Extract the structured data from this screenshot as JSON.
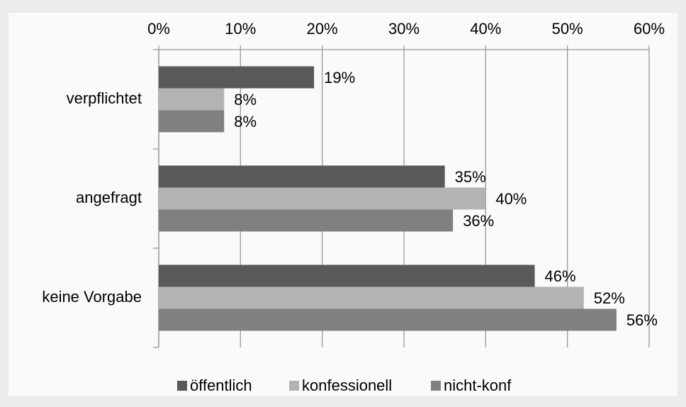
{
  "chart_data": {
    "type": "barh",
    "categories": [
      "verpflichtet",
      "angefragt",
      "keine Vorgabe"
    ],
    "series": [
      {
        "name": "öffentlich",
        "color": "#595959",
        "values": [
          19,
          35,
          46
        ],
        "value_labels": [
          "19%",
          "35%",
          "46%"
        ]
      },
      {
        "name": "konfessionell",
        "color": "#b3b3b3",
        "values": [
          8,
          40,
          52
        ],
        "value_labels": [
          "8%",
          "40%",
          "52%"
        ]
      },
      {
        "name": "nicht-konf",
        "color": "#808080",
        "values": [
          8,
          36,
          56
        ],
        "value_labels": [
          "8%",
          "36%",
          "56%"
        ]
      }
    ],
    "xlim": [
      0,
      60
    ],
    "xticks": [
      {
        "value": 0,
        "label": "0%"
      },
      {
        "value": 10,
        "label": "10%"
      },
      {
        "value": 20,
        "label": "20%"
      },
      {
        "value": 30,
        "label": "30%"
      },
      {
        "value": 40,
        "label": "40%"
      },
      {
        "value": 50,
        "label": "50%"
      },
      {
        "value": 60,
        "label": "60%"
      }
    ],
    "grid": true,
    "legend": "bottom"
  }
}
